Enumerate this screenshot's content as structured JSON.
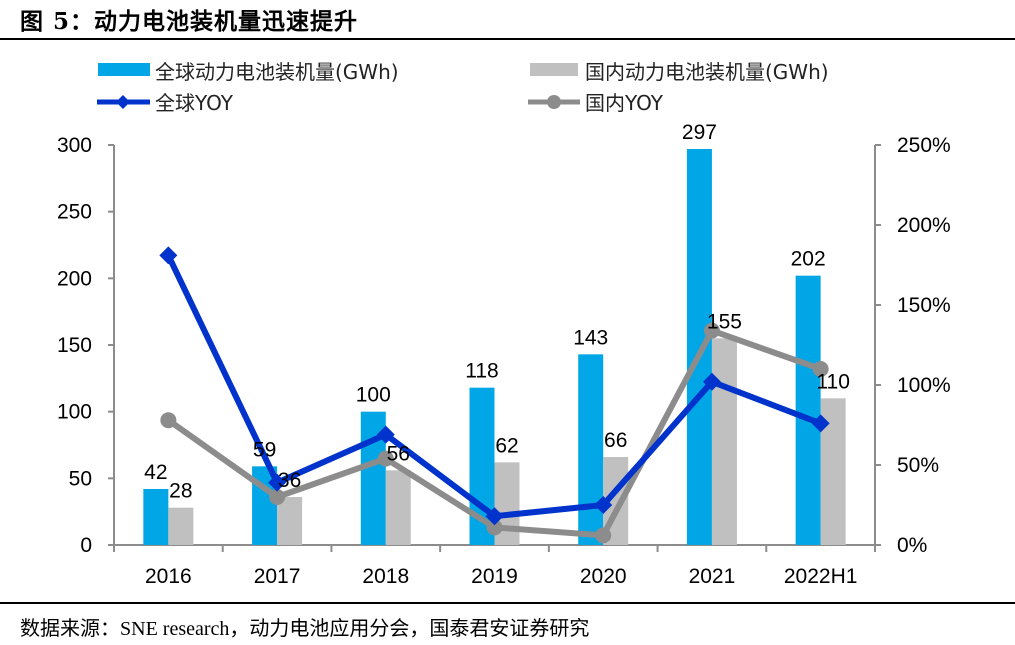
{
  "figure": {
    "title": "图 5：动力电池装机量迅速提升",
    "source": "数据来源：SNE research，动力电池应用分会，国泰君安证券研究"
  },
  "colors": {
    "global_bar": "#00A6E6",
    "domestic_bar": "#C0C0C0",
    "global_yoy": "#0033CC",
    "domestic_yoy": "#8C8C8C",
    "axis": "#8C8C8C"
  },
  "chart_data": {
    "type": "bar",
    "title": "动力电池装机量迅速提升",
    "categories": [
      "2016",
      "2017",
      "2018",
      "2019",
      "2020",
      "2021",
      "2022H1"
    ],
    "series": [
      {
        "name": "全球动力电池装机量(GWh)",
        "kind": "bar",
        "axis": "left",
        "values": [
          42,
          59,
          100,
          118,
          143,
          297,
          202
        ],
        "labels": [
          "42",
          "59",
          "100",
          "118",
          "143",
          "297",
          "202"
        ]
      },
      {
        "name": "国内动力电池装机量(GWh)",
        "kind": "bar",
        "axis": "left",
        "values": [
          28,
          36,
          56,
          62,
          66,
          155,
          110
        ],
        "labels": [
          "28",
          "36",
          "56",
          "62",
          "66",
          "155",
          "110"
        ]
      },
      {
        "name": "全球YOY",
        "kind": "line",
        "marker": "diamond",
        "axis": "right",
        "values": [
          181,
          39,
          69,
          18,
          25,
          102,
          76
        ]
      },
      {
        "name": "国内YOY",
        "kind": "line",
        "marker": "circle",
        "axis": "right",
        "values": [
          78,
          30,
          54,
          11,
          6,
          134,
          110
        ]
      }
    ],
    "left_axis": {
      "min": 0,
      "max": 300,
      "ticks": [
        "0",
        "50",
        "100",
        "150",
        "200",
        "250",
        "300"
      ]
    },
    "right_axis": {
      "min": 0,
      "max": 250,
      "unit": "%",
      "ticks": [
        "0%",
        "50%",
        "100%",
        "150%",
        "200%",
        "250%"
      ]
    },
    "xlabel": "",
    "ylabel": "",
    "grid": false,
    "legend_position": "top"
  }
}
